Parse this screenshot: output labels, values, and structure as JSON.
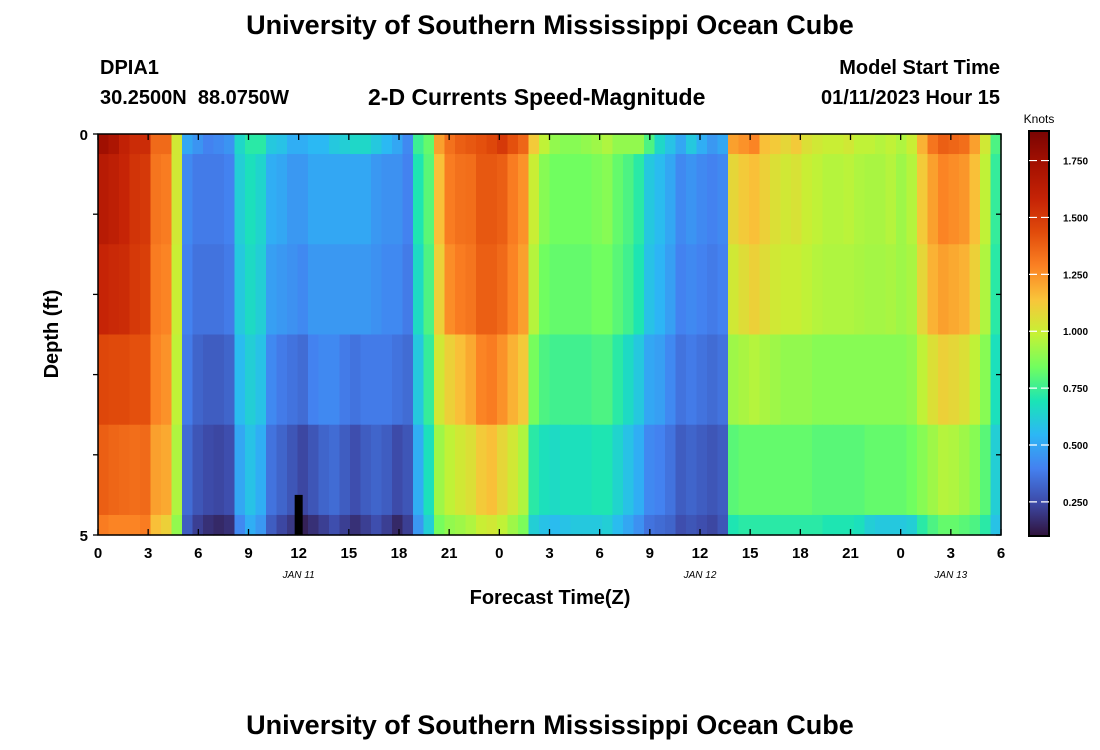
{
  "page": {
    "title": "University of Southern Mississippi Ocean Cube",
    "station_name": "DPIA1",
    "station_coords": "30.2500N  88.0750W",
    "plot_title": "2-D Currents Speed-Magnitude",
    "model_start_label": "Model Start Time",
    "model_start_value": "01/11/2023 Hour 15",
    "footer_title": "University of Southern Mississippi Ocean Cube"
  },
  "colors": {
    "background": "#ffffff",
    "text": "#000000",
    "colormap": [
      "#30123b",
      "#3d4aa8",
      "#4481f0",
      "#2cb7f5",
      "#1ae4b6",
      "#71fe5f",
      "#c6f134",
      "#f9c53a",
      "#fb8123",
      "#e14b0b",
      "#c52306",
      "#a51101",
      "#7a0403"
    ]
  },
  "chart_data": {
    "type": "heatmap",
    "title": "2-D Currents Speed-Magnitude",
    "xlabel": "Forecast Time(Z)",
    "ylabel": "Depth (ft)",
    "x_tick_labels": [
      "0",
      "3",
      "6",
      "9",
      "12",
      "15",
      "18",
      "21",
      "0",
      "3",
      "6",
      "9",
      "12",
      "15",
      "18",
      "21",
      "0",
      "3",
      "6"
    ],
    "x_range_hours": [
      0,
      54
    ],
    "date_labels": [
      {
        "label": "JAN 11",
        "hour": 12
      },
      {
        "label": "JAN 12",
        "hour": 36
      },
      {
        "label": "JAN 13",
        "hour": 51
      }
    ],
    "y_tick_labels": [
      "0",
      "5"
    ],
    "y_range": [
      0,
      5
    ],
    "depth_levels": 5,
    "colorbar": {
      "label": "Knots",
      "ticks": [
        "1.750",
        "1.500",
        "1.250",
        "1.000",
        "0.750",
        "0.500",
        "0.250"
      ],
      "tick_values": [
        1.75,
        1.5,
        1.25,
        1.0,
        0.75,
        0.5,
        0.25
      ],
      "range": [
        0.1,
        1.88
      ]
    },
    "anomaly": {
      "hour": 12,
      "depth_start": 4.5,
      "depth_end": 5,
      "value": 0.0
    },
    "speed_knots_by_hour": [
      [
        1.75,
        1.7,
        1.6,
        1.55,
        1.55,
        1.35,
        1.35,
        1.02,
        0.5,
        0.45,
        0.4,
        0.42,
        0.45,
        0.65,
        0.72,
        0.72,
        0.6,
        0.58,
        0.52,
        0.52,
        0.55,
        0.55,
        0.6,
        0.62,
        0.65,
        0.65,
        0.6,
        0.55,
        0.5,
        0.42,
        0.75,
        0.82,
        1.22,
        1.33,
        1.38,
        1.4,
        1.42,
        1.45,
        1.5,
        1.42,
        1.36,
        1.12,
        0.98,
        0.9,
        0.88,
        0.88,
        0.9,
        0.92,
        0.95,
        0.9,
        0.9,
        0.9,
        0.78,
        0.65,
        0.58,
        0.5,
        0.6,
        0.52,
        0.46,
        0.5,
        1.22,
        1.25,
        1.28,
        1.15,
        1.12,
        1.08,
        1.12,
        1.05,
        1.02,
        1.0,
        1.0,
        1.02,
        0.98,
        0.98,
        0.96,
        0.98,
        0.95,
        1.0,
        1.18,
        1.32,
        1.38,
        1.36,
        1.34,
        1.22,
        1.02,
        0.78
      ],
      [
        1.65,
        1.62,
        1.58,
        1.52,
        1.5,
        1.32,
        1.3,
        1.02,
        0.42,
        0.38,
        0.38,
        0.38,
        0.4,
        0.62,
        0.68,
        0.64,
        0.52,
        0.5,
        0.46,
        0.46,
        0.5,
        0.5,
        0.5,
        0.5,
        0.5,
        0.5,
        0.46,
        0.44,
        0.44,
        0.4,
        0.7,
        0.8,
        1.15,
        1.3,
        1.33,
        1.34,
        1.4,
        1.4,
        1.38,
        1.3,
        1.25,
        1.0,
        0.88,
        0.84,
        0.84,
        0.84,
        0.84,
        0.86,
        0.88,
        0.82,
        0.78,
        0.72,
        0.6,
        0.56,
        0.5,
        0.42,
        0.45,
        0.42,
        0.4,
        0.42,
        1.08,
        1.12,
        1.15,
        1.1,
        1.05,
        1.02,
        1.04,
        1.0,
        0.98,
        0.96,
        0.96,
        0.97,
        0.95,
        0.94,
        0.94,
        0.96,
        0.92,
        0.96,
        1.12,
        1.22,
        1.28,
        1.26,
        1.24,
        1.15,
        0.98,
        0.74
      ],
      [
        1.58,
        1.56,
        1.55,
        1.5,
        1.48,
        1.3,
        1.28,
        1.0,
        0.4,
        0.36,
        0.36,
        0.36,
        0.38,
        0.6,
        0.66,
        0.62,
        0.48,
        0.46,
        0.44,
        0.42,
        0.46,
        0.46,
        0.46,
        0.46,
        0.46,
        0.46,
        0.44,
        0.42,
        0.42,
        0.38,
        0.66,
        0.78,
        1.1,
        1.26,
        1.3,
        1.32,
        1.38,
        1.38,
        1.35,
        1.28,
        1.22,
        0.96,
        0.84,
        0.82,
        0.82,
        0.82,
        0.82,
        0.84,
        0.84,
        0.8,
        0.76,
        0.7,
        0.58,
        0.54,
        0.48,
        0.4,
        0.42,
        0.4,
        0.38,
        0.4,
        1.02,
        1.06,
        1.1,
        1.06,
        1.02,
        1.0,
        1.0,
        0.98,
        0.96,
        0.95,
        0.95,
        0.95,
        0.94,
        0.93,
        0.93,
        0.94,
        0.92,
        0.94,
        1.08,
        1.18,
        1.22,
        1.2,
        1.18,
        1.1,
        0.95,
        0.72
      ],
      [
        1.45,
        1.44,
        1.44,
        1.42,
        1.42,
        1.28,
        1.25,
        0.98,
        0.38,
        0.32,
        0.3,
        0.3,
        0.32,
        0.56,
        0.62,
        0.58,
        0.42,
        0.38,
        0.36,
        0.34,
        0.4,
        0.42,
        0.42,
        0.38,
        0.36,
        0.38,
        0.38,
        0.38,
        0.36,
        0.34,
        0.6,
        0.74,
        1.02,
        1.1,
        1.15,
        1.2,
        1.28,
        1.3,
        1.25,
        1.18,
        1.12,
        0.85,
        0.78,
        0.76,
        0.76,
        0.76,
        0.76,
        0.78,
        0.78,
        0.72,
        0.66,
        0.6,
        0.5,
        0.48,
        0.42,
        0.36,
        0.38,
        0.36,
        0.34,
        0.36,
        0.92,
        0.94,
        0.96,
        0.94,
        0.92,
        0.9,
        0.9,
        0.9,
        0.88,
        0.88,
        0.88,
        0.88,
        0.88,
        0.88,
        0.88,
        0.88,
        0.88,
        0.9,
        0.98,
        1.05,
        1.1,
        1.08,
        1.05,
        0.98,
        0.88,
        0.68
      ],
      [
        1.38,
        1.36,
        1.35,
        1.34,
        1.35,
        1.22,
        1.2,
        0.95,
        0.34,
        0.28,
        0.25,
        0.24,
        0.26,
        0.5,
        0.58,
        0.52,
        0.36,
        0.32,
        0.28,
        0.24,
        0.28,
        0.32,
        0.34,
        0.3,
        0.26,
        0.3,
        0.32,
        0.3,
        0.25,
        0.28,
        0.52,
        0.68,
        0.92,
        0.98,
        1.02,
        1.05,
        1.12,
        1.15,
        1.08,
        1.02,
        0.95,
        0.72,
        0.68,
        0.66,
        0.68,
        0.68,
        0.68,
        0.7,
        0.7,
        0.64,
        0.58,
        0.52,
        0.42,
        0.4,
        0.36,
        0.3,
        0.32,
        0.3,
        0.28,
        0.3,
        0.8,
        0.82,
        0.82,
        0.82,
        0.82,
        0.82,
        0.82,
        0.82,
        0.8,
        0.8,
        0.8,
        0.8,
        0.8,
        0.82,
        0.82,
        0.82,
        0.82,
        0.84,
        0.88,
        0.92,
        0.96,
        0.95,
        0.92,
        0.88,
        0.8,
        0.62
      ],
      [
        1.3,
        1.28,
        1.28,
        1.28,
        1.3,
        1.15,
        1.1,
        0.9,
        0.3,
        0.22,
        0.18,
        0.16,
        0.18,
        0.42,
        0.52,
        0.46,
        0.3,
        0.24,
        0.2,
        0.14,
        0.18,
        0.22,
        0.26,
        0.22,
        0.18,
        0.22,
        0.26,
        0.22,
        0.16,
        0.22,
        0.46,
        0.62,
        0.85,
        0.9,
        0.92,
        0.95,
        1.0,
        1.02,
        0.98,
        0.92,
        0.86,
        0.62,
        0.58,
        0.56,
        0.58,
        0.6,
        0.6,
        0.6,
        0.62,
        0.56,
        0.5,
        0.44,
        0.36,
        0.34,
        0.32,
        0.26,
        0.28,
        0.26,
        0.24,
        0.28,
        0.7,
        0.72,
        0.72,
        0.72,
        0.72,
        0.72,
        0.72,
        0.72,
        0.72,
        0.7,
        0.7,
        0.7,
        0.68,
        0.62,
        0.6,
        0.6,
        0.6,
        0.62,
        0.72,
        0.78,
        0.82,
        0.82,
        0.8,
        0.78,
        0.72,
        0.58
      ]
    ]
  }
}
